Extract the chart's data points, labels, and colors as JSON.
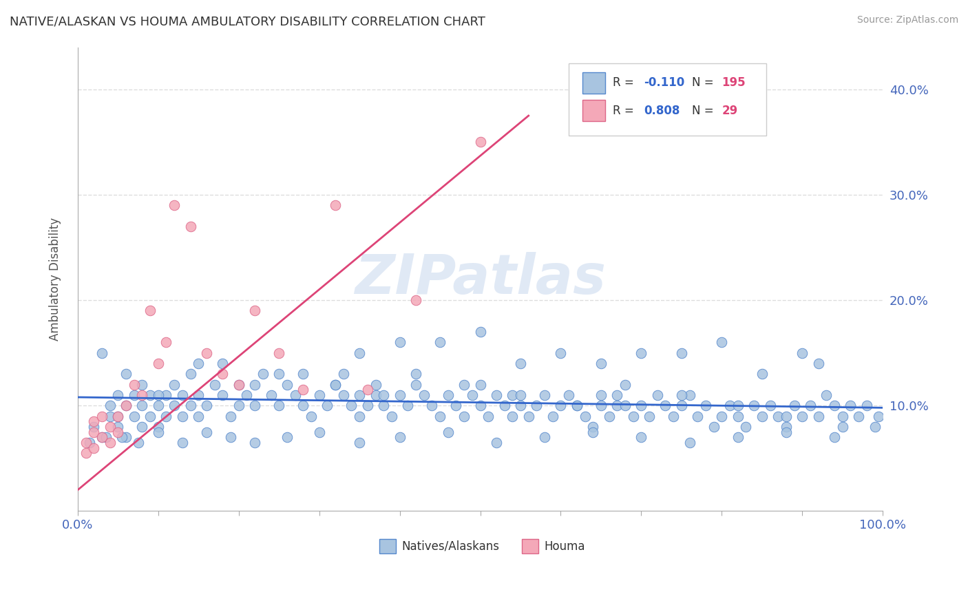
{
  "title": "NATIVE/ALASKAN VS HOUMA AMBULATORY DISABILITY CORRELATION CHART",
  "source": "Source: ZipAtlas.com",
  "ylabel": "Ambulatory Disability",
  "xlim": [
    0,
    1.0
  ],
  "ylim": [
    0,
    0.44
  ],
  "xticks": [
    0.0,
    0.1,
    0.2,
    0.3,
    0.4,
    0.5,
    0.6,
    0.7,
    0.8,
    0.9,
    1.0
  ],
  "xticklabels": [
    "0.0%",
    "",
    "",
    "",
    "",
    "",
    "",
    "",
    "",
    "",
    "100.0%"
  ],
  "yticks_right": [
    0.1,
    0.2,
    0.3,
    0.4
  ],
  "yticklabels_right": [
    "10.0%",
    "20.0%",
    "30.0%",
    "40.0%"
  ],
  "blue_color": "#a8c4e0",
  "pink_color": "#f4a8b8",
  "blue_edge_color": "#5588cc",
  "pink_edge_color": "#dd6688",
  "blue_line_color": "#3366cc",
  "pink_line_color": "#dd4477",
  "legend_R_color": "#3366cc",
  "legend_N_color": "#dd4477",
  "title_color": "#333333",
  "grid_color": "#dddddd",
  "watermark": "ZIPatlas",
  "blue_scatter_x": [
    0.02,
    0.03,
    0.04,
    0.04,
    0.05,
    0.05,
    0.05,
    0.06,
    0.06,
    0.07,
    0.07,
    0.08,
    0.08,
    0.08,
    0.09,
    0.09,
    0.1,
    0.1,
    0.11,
    0.11,
    0.12,
    0.12,
    0.13,
    0.13,
    0.14,
    0.15,
    0.15,
    0.16,
    0.17,
    0.18,
    0.19,
    0.2,
    0.2,
    0.21,
    0.22,
    0.23,
    0.24,
    0.25,
    0.26,
    0.27,
    0.28,
    0.29,
    0.3,
    0.31,
    0.32,
    0.33,
    0.33,
    0.34,
    0.35,
    0.35,
    0.36,
    0.37,
    0.37,
    0.38,
    0.39,
    0.4,
    0.41,
    0.42,
    0.43,
    0.44,
    0.45,
    0.46,
    0.47,
    0.48,
    0.49,
    0.5,
    0.5,
    0.51,
    0.52,
    0.53,
    0.54,
    0.54,
    0.55,
    0.56,
    0.57,
    0.58,
    0.59,
    0.6,
    0.61,
    0.62,
    0.63,
    0.64,
    0.65,
    0.65,
    0.66,
    0.67,
    0.67,
    0.68,
    0.69,
    0.7,
    0.71,
    0.72,
    0.73,
    0.74,
    0.75,
    0.76,
    0.77,
    0.78,
    0.79,
    0.8,
    0.81,
    0.82,
    0.83,
    0.84,
    0.85,
    0.86,
    0.87,
    0.88,
    0.89,
    0.9,
    0.91,
    0.92,
    0.93,
    0.94,
    0.95,
    0.96,
    0.97,
    0.98,
    0.99,
    0.995,
    0.03,
    0.06,
    0.1,
    0.14,
    0.18,
    0.22,
    0.28,
    0.32,
    0.38,
    0.42,
    0.48,
    0.55,
    0.62,
    0.68,
    0.75,
    0.82,
    0.88,
    0.95,
    0.015,
    0.035,
    0.055,
    0.075,
    0.1,
    0.13,
    0.16,
    0.19,
    0.22,
    0.26,
    0.3,
    0.35,
    0.4,
    0.46,
    0.52,
    0.58,
    0.64,
    0.7,
    0.76,
    0.82,
    0.88,
    0.94,
    0.4,
    0.5,
    0.6,
    0.55,
    0.45,
    0.35,
    0.25,
    0.15,
    0.7,
    0.8,
    0.9,
    0.92,
    0.85,
    0.75,
    0.65
  ],
  "blue_scatter_y": [
    0.08,
    0.07,
    0.09,
    0.1,
    0.08,
    0.09,
    0.11,
    0.07,
    0.1,
    0.09,
    0.11,
    0.08,
    0.1,
    0.12,
    0.09,
    0.11,
    0.08,
    0.1,
    0.09,
    0.11,
    0.1,
    0.12,
    0.09,
    0.11,
    0.1,
    0.09,
    0.11,
    0.1,
    0.12,
    0.11,
    0.09,
    0.1,
    0.12,
    0.11,
    0.1,
    0.13,
    0.11,
    0.1,
    0.12,
    0.11,
    0.1,
    0.09,
    0.11,
    0.1,
    0.12,
    0.11,
    0.13,
    0.1,
    0.09,
    0.11,
    0.1,
    0.12,
    0.11,
    0.1,
    0.09,
    0.11,
    0.1,
    0.12,
    0.11,
    0.1,
    0.09,
    0.11,
    0.1,
    0.09,
    0.11,
    0.1,
    0.12,
    0.09,
    0.11,
    0.1,
    0.09,
    0.11,
    0.1,
    0.09,
    0.1,
    0.11,
    0.09,
    0.1,
    0.11,
    0.1,
    0.09,
    0.08,
    0.1,
    0.11,
    0.09,
    0.1,
    0.11,
    0.1,
    0.09,
    0.1,
    0.09,
    0.11,
    0.1,
    0.09,
    0.1,
    0.11,
    0.09,
    0.1,
    0.08,
    0.09,
    0.1,
    0.09,
    0.08,
    0.1,
    0.09,
    0.1,
    0.09,
    0.08,
    0.1,
    0.09,
    0.1,
    0.09,
    0.11,
    0.1,
    0.09,
    0.1,
    0.09,
    0.1,
    0.08,
    0.09,
    0.15,
    0.13,
    0.11,
    0.13,
    0.14,
    0.12,
    0.13,
    0.12,
    0.11,
    0.13,
    0.12,
    0.11,
    0.1,
    0.12,
    0.11,
    0.1,
    0.09,
    0.08,
    0.065,
    0.07,
    0.07,
    0.065,
    0.075,
    0.065,
    0.075,
    0.07,
    0.065,
    0.07,
    0.075,
    0.065,
    0.07,
    0.075,
    0.065,
    0.07,
    0.075,
    0.07,
    0.065,
    0.07,
    0.075,
    0.07,
    0.16,
    0.17,
    0.15,
    0.14,
    0.16,
    0.15,
    0.13,
    0.14,
    0.15,
    0.16,
    0.15,
    0.14,
    0.13,
    0.15,
    0.14
  ],
  "pink_scatter_x": [
    0.01,
    0.01,
    0.02,
    0.02,
    0.02,
    0.03,
    0.03,
    0.04,
    0.04,
    0.05,
    0.05,
    0.06,
    0.07,
    0.08,
    0.09,
    0.1,
    0.11,
    0.12,
    0.14,
    0.16,
    0.18,
    0.2,
    0.22,
    0.25,
    0.28,
    0.32,
    0.36,
    0.42,
    0.5
  ],
  "pink_scatter_y": [
    0.065,
    0.055,
    0.075,
    0.06,
    0.085,
    0.07,
    0.09,
    0.065,
    0.08,
    0.075,
    0.09,
    0.1,
    0.12,
    0.11,
    0.19,
    0.14,
    0.16,
    0.29,
    0.27,
    0.15,
    0.13,
    0.12,
    0.19,
    0.15,
    0.115,
    0.29,
    0.115,
    0.2,
    0.35
  ],
  "blue_trendline_x": [
    0.0,
    1.0
  ],
  "blue_trendline_y": [
    0.108,
    0.098
  ],
  "pink_trendline_x": [
    0.0,
    0.56
  ],
  "pink_trendline_y": [
    0.02,
    0.375
  ]
}
